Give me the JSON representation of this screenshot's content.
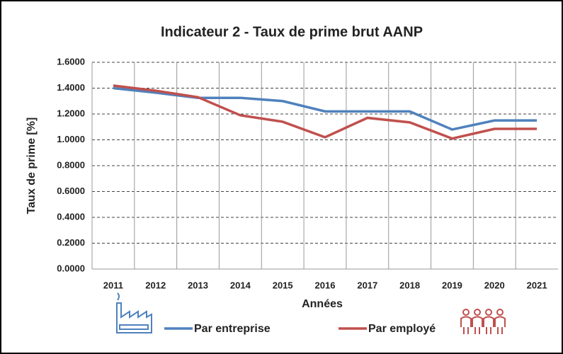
{
  "chart_data": {
    "type": "line",
    "title": "Indicateur 2 - Taux de prime brut AANP",
    "x_label": "Années",
    "y_label": "Taux de prime [%]",
    "categories": [
      "2011",
      "2012",
      "2013",
      "2014",
      "2015",
      "2016",
      "2017",
      "2018",
      "2019",
      "2020",
      "2021"
    ],
    "series": [
      {
        "name": "Par entreprise",
        "color": "#4f81bd",
        "values": [
          1.4,
          1.365,
          1.325,
          1.325,
          1.3,
          1.22,
          1.22,
          1.22,
          1.08,
          1.15,
          1.15
        ]
      },
      {
        "name": "Par employé",
        "color": "#c0504d",
        "values": [
          1.42,
          1.38,
          1.33,
          1.19,
          1.14,
          1.02,
          1.17,
          1.135,
          1.01,
          1.085,
          1.085
        ]
      }
    ],
    "ylim": [
      0,
      1.6
    ],
    "yticks": [
      {
        "value": 0,
        "label": "0.0000"
      },
      {
        "value": 0.2,
        "label": "0.2000"
      },
      {
        "value": 0.4,
        "label": "0.4000"
      },
      {
        "value": 0.6,
        "label": "0.6000"
      },
      {
        "value": 0.8,
        "label": "0.8000"
      },
      {
        "value": 1.0,
        "label": "1.0000"
      },
      {
        "value": 1.2,
        "label": "1.2000"
      },
      {
        "value": 1.4,
        "label": "1.4000"
      },
      {
        "value": 1.6,
        "label": "1.6000"
      }
    ],
    "grid": true,
    "legend": "bottom"
  }
}
